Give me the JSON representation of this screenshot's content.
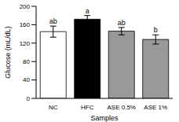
{
  "chart_data": {
    "type": "bar",
    "categories": [
      "NC",
      "HFC",
      "ASE 0.5%",
      "ASE 1%"
    ],
    "values": [
      145,
      172,
      146,
      128
    ],
    "errors": [
      12,
      8,
      8,
      10
    ],
    "annotations": [
      "ab",
      "a",
      "ab",
      "b"
    ],
    "colors": [
      "#ffffff",
      "#000000",
      "#999999",
      "#999999"
    ],
    "x_label": "Samples",
    "y_label": "Glucose (mL/dL)",
    "ylim": [
      0,
      200
    ],
    "yticks": [
      0,
      40,
      80,
      120,
      160,
      200
    ],
    "grid": false
  }
}
